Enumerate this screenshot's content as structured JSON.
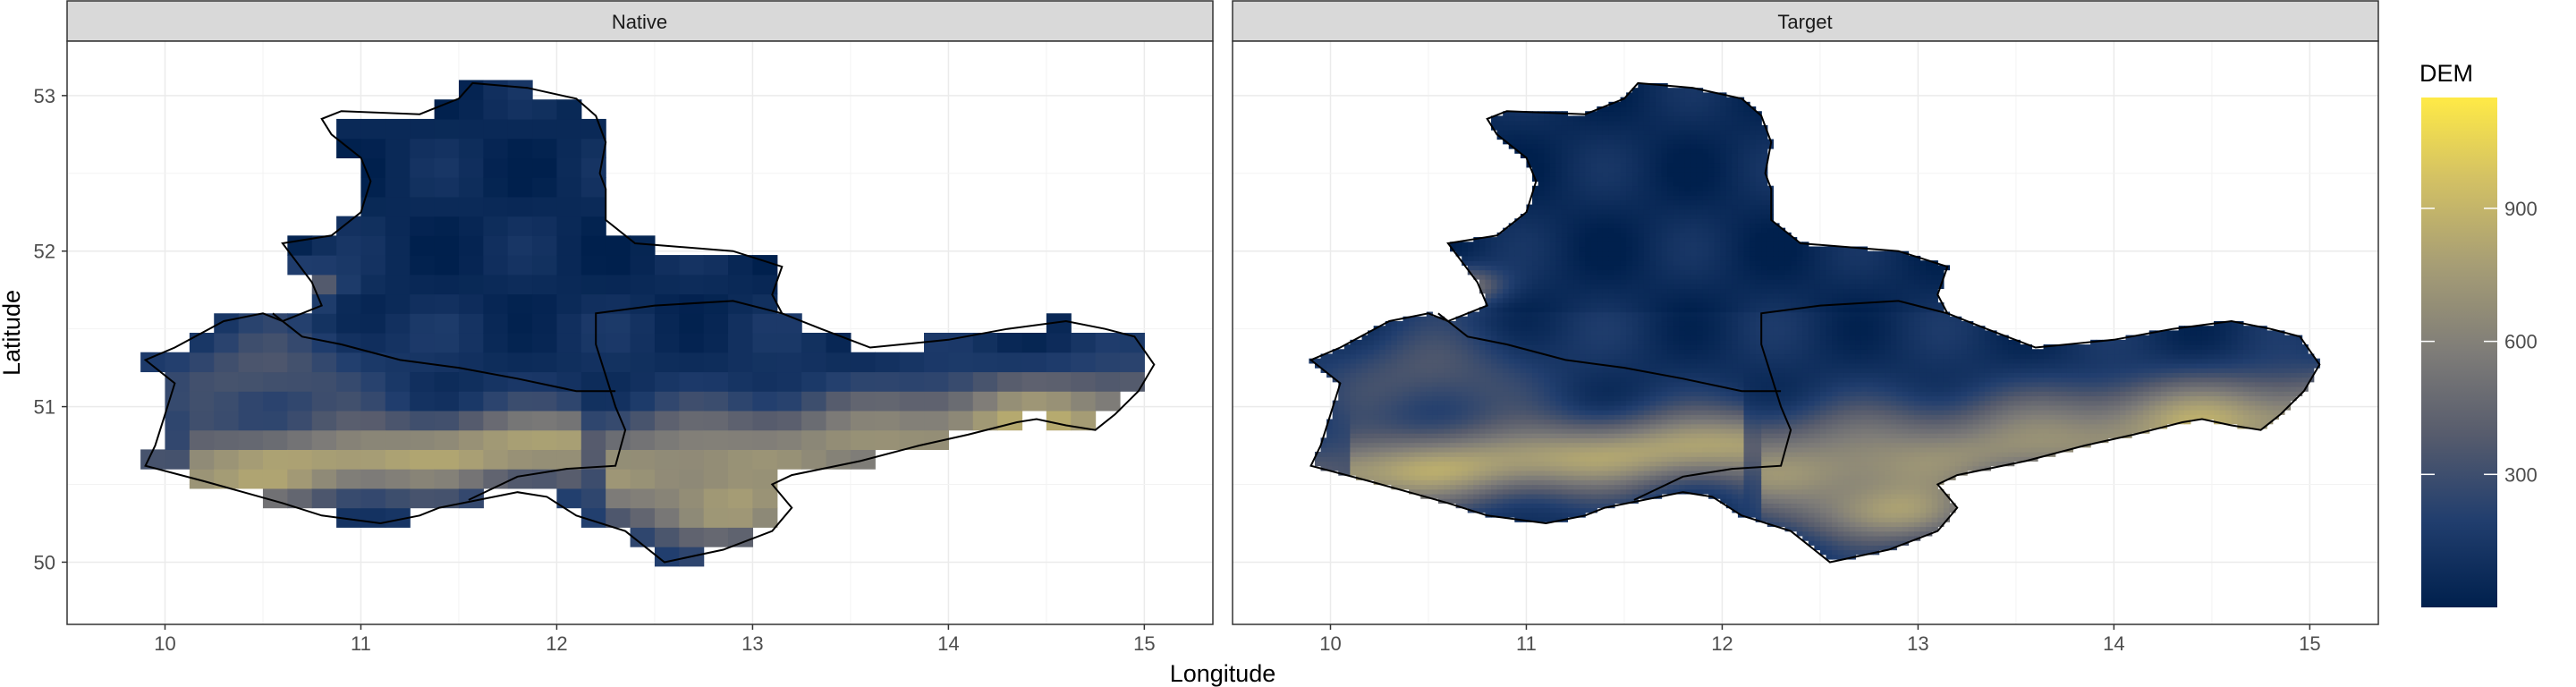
{
  "chart_data": {
    "type": "heatmap",
    "description_type": "faceted raster map",
    "xlabel": "Longitude",
    "ylabel": "Latitude",
    "xlim": [
      9.5,
      15.35
    ],
    "ylim": [
      49.6,
      53.35
    ],
    "x_ticks": [
      10,
      11,
      12,
      13,
      14,
      15
    ],
    "y_ticks": [
      50,
      51,
      52,
      53
    ],
    "x_tick_labels": [
      "10",
      "11",
      "12",
      "13",
      "14",
      "15"
    ],
    "y_tick_labels": [
      "50",
      "51",
      "52",
      "53"
    ],
    "grid": true,
    "facets": [
      {
        "id": "native",
        "label": "Native",
        "resolution": "coarse"
      },
      {
        "id": "target",
        "label": "Target",
        "resolution": "fine"
      }
    ],
    "legend": {
      "title": "DEM",
      "placement": "right",
      "breaks": [
        300,
        600,
        900
      ],
      "break_labels": [
        "300",
        "600",
        "900"
      ],
      "range": [
        0,
        1150
      ],
      "colors": [
        "#00204d",
        "#213e6e",
        "#575c6d",
        "#7e7c78",
        "#a69d75",
        "#d3c164",
        "#ffea46"
      ]
    },
    "outline": [
      [
        11.57,
        53.08
      ],
      [
        11.85,
        53.05
      ],
      [
        12.1,
        52.98
      ],
      [
        12.2,
        52.87
      ],
      [
        12.25,
        52.7
      ],
      [
        12.22,
        52.5
      ],
      [
        12.25,
        52.4
      ],
      [
        12.25,
        52.2
      ],
      [
        12.4,
        52.05
      ],
      [
        12.9,
        52.0
      ],
      [
        13.15,
        51.9
      ],
      [
        13.1,
        51.72
      ],
      [
        13.15,
        51.6
      ],
      [
        13.35,
        51.5
      ],
      [
        13.6,
        51.38
      ],
      [
        14.0,
        51.43
      ],
      [
        14.3,
        51.5
      ],
      [
        14.6,
        51.55
      ],
      [
        14.8,
        51.5
      ],
      [
        14.95,
        51.45
      ],
      [
        15.05,
        51.27
      ],
      [
        14.97,
        51.1
      ],
      [
        14.85,
        50.95
      ],
      [
        14.75,
        50.85
      ],
      [
        14.6,
        50.88
      ],
      [
        14.45,
        50.92
      ],
      [
        14.35,
        50.9
      ],
      [
        14.1,
        50.82
      ],
      [
        13.85,
        50.75
      ],
      [
        13.55,
        50.65
      ],
      [
        13.2,
        50.56
      ],
      [
        13.1,
        50.5
      ],
      [
        13.2,
        50.35
      ],
      [
        13.1,
        50.2
      ],
      [
        12.85,
        50.08
      ],
      [
        12.55,
        50.0
      ],
      [
        12.35,
        50.2
      ],
      [
        12.1,
        50.3
      ],
      [
        11.95,
        50.42
      ],
      [
        11.8,
        50.45
      ],
      [
        11.6,
        50.4
      ],
      [
        11.4,
        50.35
      ],
      [
        11.3,
        50.3
      ],
      [
        11.1,
        50.25
      ],
      [
        10.8,
        50.3
      ],
      [
        10.6,
        50.38
      ],
      [
        10.4,
        50.45
      ],
      [
        10.2,
        50.52
      ],
      [
        9.9,
        50.62
      ],
      [
        9.95,
        50.75
      ],
      [
        10.0,
        50.95
      ],
      [
        10.05,
        51.15
      ],
      [
        9.9,
        51.3
      ],
      [
        10.05,
        51.38
      ],
      [
        10.3,
        51.55
      ],
      [
        10.5,
        51.6
      ],
      [
        10.6,
        51.55
      ],
      [
        10.8,
        51.65
      ],
      [
        10.75,
        51.8
      ],
      [
        10.6,
        52.05
      ],
      [
        10.85,
        52.1
      ],
      [
        11.0,
        52.25
      ],
      [
        11.05,
        52.45
      ],
      [
        11.0,
        52.6
      ],
      [
        10.85,
        52.75
      ],
      [
        10.8,
        52.85
      ],
      [
        10.9,
        52.9
      ],
      [
        11.3,
        52.88
      ],
      [
        11.5,
        52.98
      ]
    ],
    "internal_borders": [
      [
        [
          10.55,
          51.6
        ],
        [
          10.7,
          51.45
        ],
        [
          10.9,
          51.4
        ],
        [
          11.2,
          51.3
        ],
        [
          11.5,
          51.25
        ],
        [
          11.8,
          51.18
        ],
        [
          12.1,
          51.1
        ],
        [
          12.3,
          51.1
        ]
      ],
      [
        [
          11.55,
          50.4
        ],
        [
          11.8,
          50.55
        ],
        [
          12.05,
          50.6
        ],
        [
          12.3,
          50.62
        ],
        [
          12.35,
          50.85
        ],
        [
          12.3,
          51.0
        ],
        [
          12.25,
          51.2
        ],
        [
          12.2,
          51.4
        ],
        [
          12.2,
          51.6
        ],
        [
          12.5,
          51.65
        ],
        [
          12.9,
          51.68
        ],
        [
          13.15,
          51.6
        ]
      ]
    ]
  }
}
